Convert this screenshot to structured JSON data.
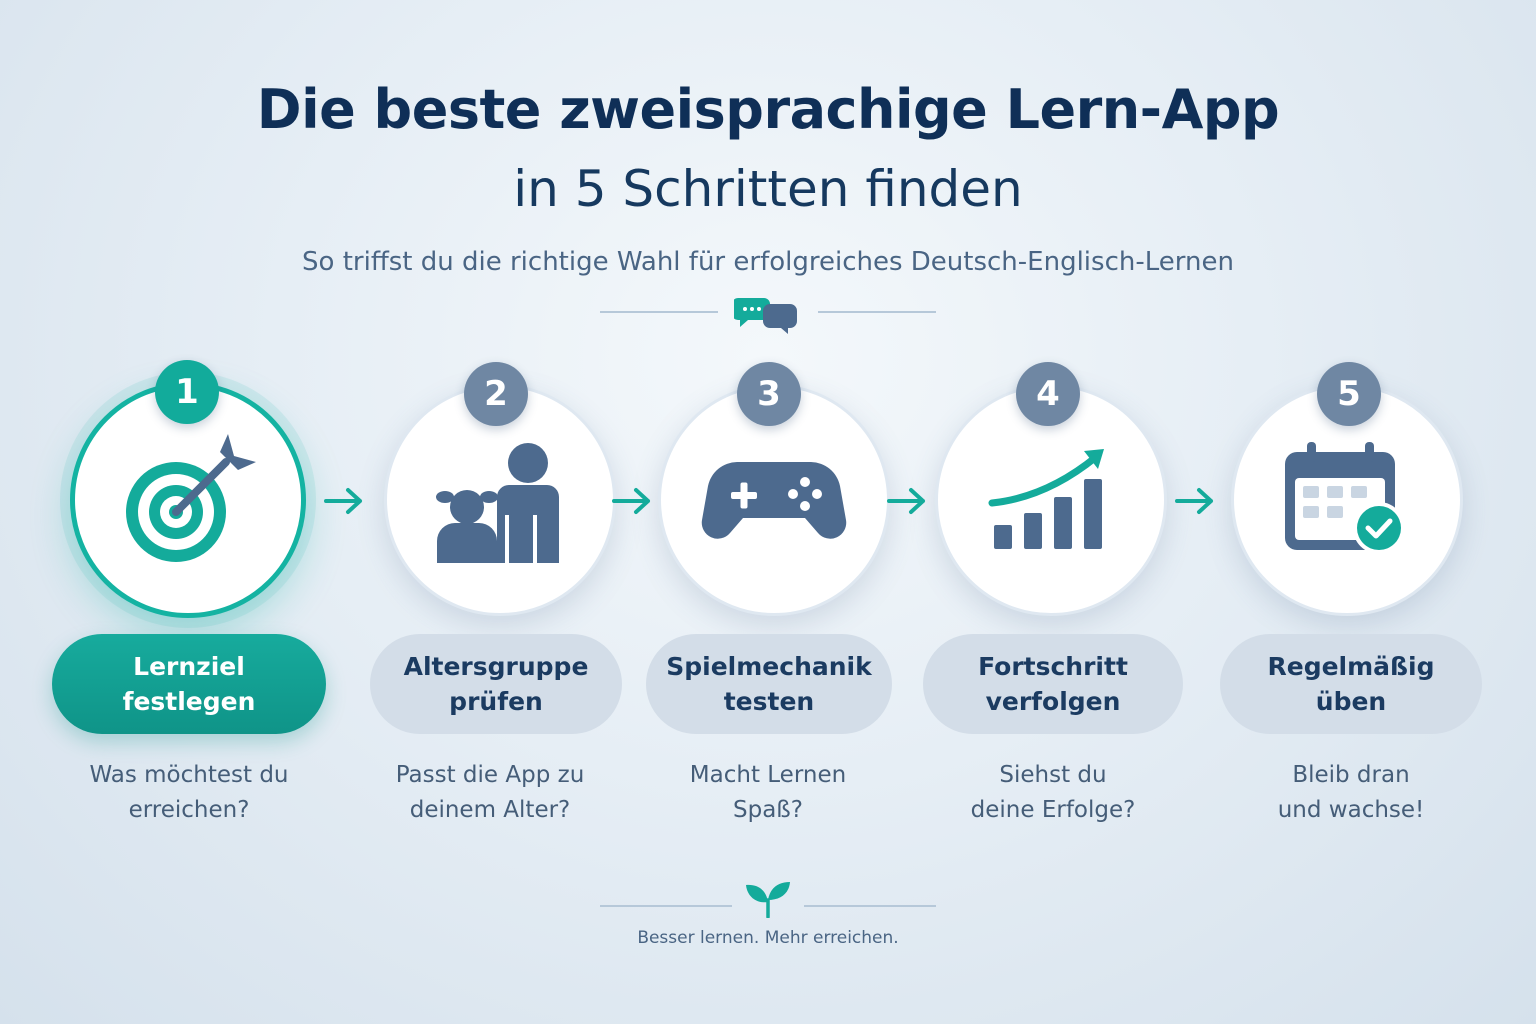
{
  "title": {
    "line1": "Die beste zweisprachige Lern-App",
    "line2": "in 5 Schritten finden"
  },
  "subtitle": "So triffst du die richtige Wahl für erfolgreiches Deutsch-Englisch-Lernen",
  "steps": [
    {
      "number": "1",
      "label_line1": "Lernziel",
      "label_line2": "festlegen",
      "question_line1": "Was möchtest du",
      "question_line2": "erreichen?",
      "icon": "target-icon",
      "active": true
    },
    {
      "number": "2",
      "label_line1": "Altersgruppe",
      "label_line2": "prüfen",
      "question_line1": "Passt die App zu",
      "question_line2": "deinem Alter?",
      "icon": "people-icon",
      "active": false
    },
    {
      "number": "3",
      "label_line1": "Spielmechanik",
      "label_line2": "testen",
      "question_line1": "Macht Lernen",
      "question_line2": "Spaß?",
      "icon": "gamepad-icon",
      "active": false
    },
    {
      "number": "4",
      "label_line1": "Fortschritt",
      "label_line2": "verfolgen",
      "question_line1": "Siehst du",
      "question_line2": "deine Erfolge?",
      "icon": "growth-chart-icon",
      "active": false
    },
    {
      "number": "5",
      "label_line1": "Regelmäßig",
      "label_line2": "üben",
      "question_line1": "Bleib dran",
      "question_line2": "und wachse!",
      "icon": "calendar-check-icon",
      "active": false
    }
  ],
  "footer": "Besser lernen. Mehr erreichen.",
  "colors": {
    "accent": "#12ab9b",
    "icon_blue": "#4d6a8e",
    "title": "#0f2f57",
    "number_inactive": "#6f87a3",
    "pill_inactive": "#d3dde8"
  }
}
